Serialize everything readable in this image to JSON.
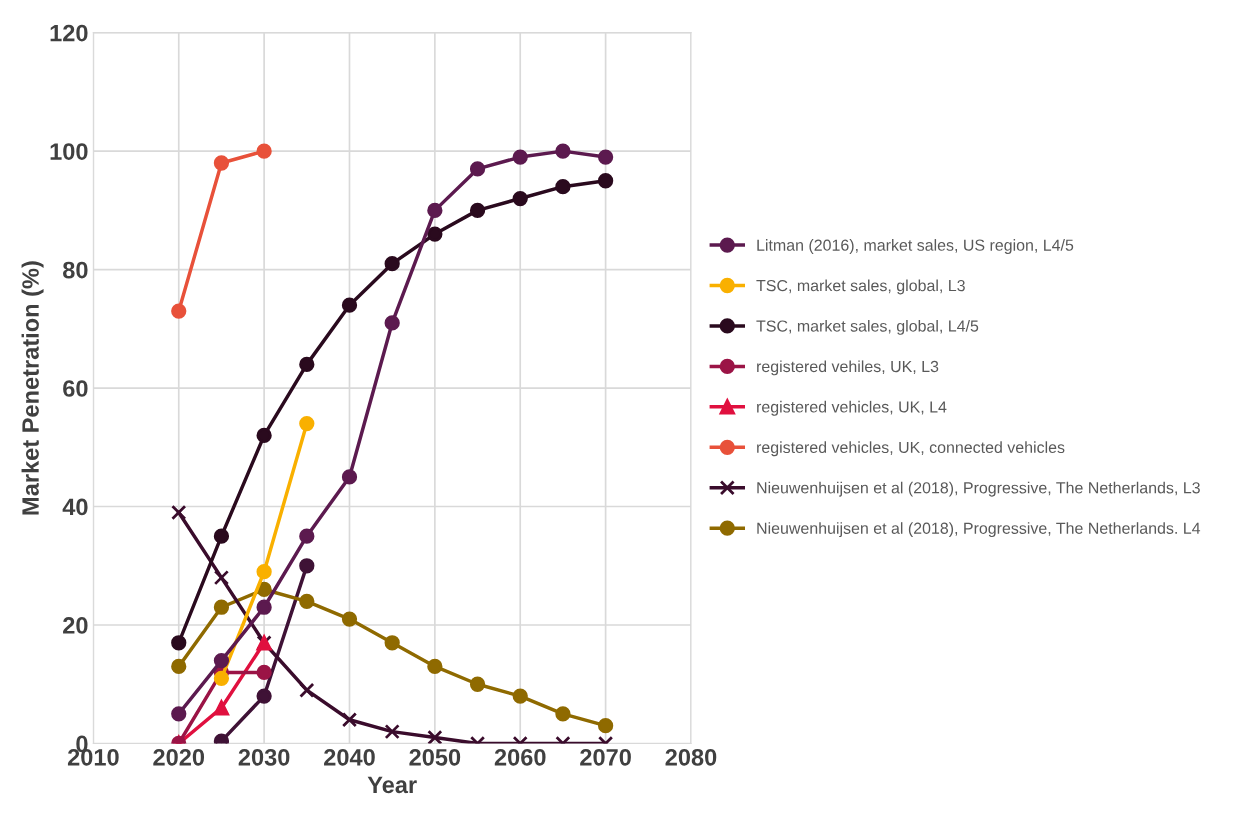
{
  "chart_data": {
    "type": "line",
    "xlabel": "Year",
    "ylabel": "Market Penetration (%)",
    "xlim": [
      2010,
      2080
    ],
    "xticks": [
      2010,
      2020,
      2030,
      2040,
      2050,
      2060,
      2070,
      2080
    ],
    "ylim": [
      0,
      120
    ],
    "yticks": [
      0,
      20,
      40,
      60,
      80,
      100,
      120
    ],
    "grid": true,
    "legend": "right",
    "line_style": "solid",
    "series": [
      {
        "name": "Litman (2016), market sales, US region, L4/5",
        "color": "#5c1a4f",
        "marker": "circle",
        "x": [
          2020,
          2025,
          2030,
          2035,
          2040,
          2045,
          2050,
          2055,
          2060,
          2065,
          2070
        ],
        "values": [
          5,
          14,
          23,
          35,
          45,
          71,
          90,
          97,
          99,
          100,
          99
        ]
      },
      {
        "name": "TSC, market sales, global, L3",
        "color": "#f9b000",
        "marker": "circle",
        "x": [
          2025,
          2030,
          2035
        ],
        "values": [
          11,
          29,
          54
        ]
      },
      {
        "name": "TSC, market sales, global, L4/5",
        "color": "#2a0a1e",
        "marker": "circle",
        "x": [
          2020,
          2025,
          2030,
          2035,
          2040,
          2045,
          2050,
          2055,
          2060,
          2065,
          2070
        ],
        "values": [
          17,
          35,
          52,
          64,
          74,
          81,
          86,
          90,
          92,
          94,
          95
        ]
      },
      {
        "name": "registered vehiles, UK, L3",
        "color": "#9b1446",
        "marker": "circle",
        "x": [
          2020,
          2025,
          2030
        ],
        "values": [
          0,
          12,
          12
        ]
      },
      {
        "name": "registered vehicles, UK, L4",
        "color": "#e0103f",
        "marker": "triangle",
        "x": [
          2020,
          2025,
          2030
        ],
        "values": [
          0,
          6,
          17
        ]
      },
      {
        "name": "registered vehicles, UK, connected vehicles",
        "color": "#e8513a",
        "marker": "circle",
        "x": [
          2020,
          2025,
          2030
        ],
        "values": [
          73,
          98,
          100
        ]
      },
      {
        "name": "Nieuwenhuijsen et al (2018), Progressive, The Netherlands, L3",
        "color": "#3a0c2c",
        "marker": "cross",
        "x": [
          2020,
          2025,
          2030,
          2035,
          2040,
          2045,
          2050,
          2055,
          2060,
          2065,
          2070
        ],
        "values": [
          39,
          28,
          17,
          9,
          4,
          2,
          1,
          0,
          0,
          0,
          0
        ]
      },
      {
        "name": "Nieuwenhuijsen et al (2018), Progressive, The Netherlands. L4",
        "color": "#8f6a00",
        "marker": "circle",
        "x": [
          2020,
          2025,
          2030,
          2035,
          2040,
          2045,
          2050,
          2055,
          2060,
          2065,
          2070
        ],
        "values": [
          13,
          23,
          26,
          24,
          21,
          17,
          13,
          10,
          8,
          5,
          3
        ]
      },
      {
        "color": "#3f1236",
        "marker": "circle",
        "x": [
          2025,
          2030,
          2035
        ],
        "values": [
          0.4,
          8,
          30
        ]
      }
    ]
  }
}
